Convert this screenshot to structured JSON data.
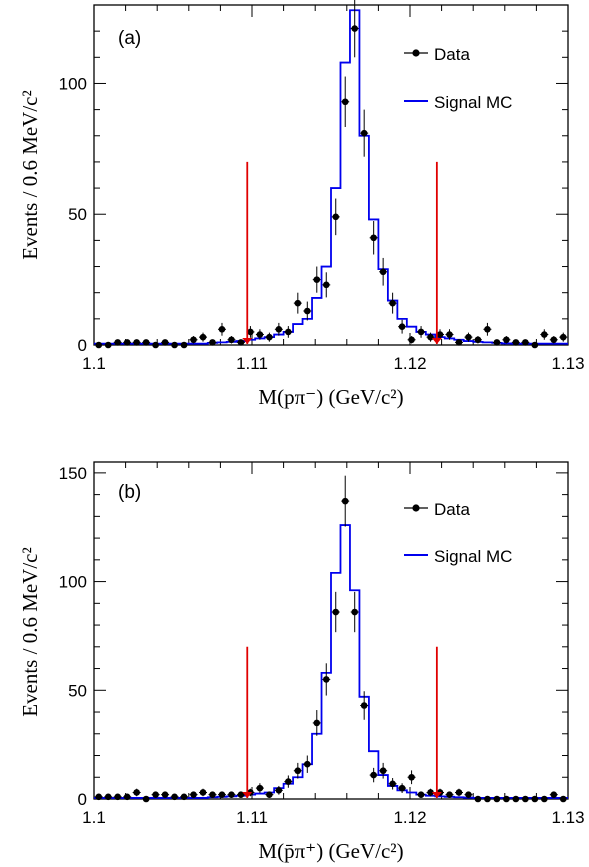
{
  "colors": {
    "data": "#000000",
    "mc": "#0000ee",
    "cut": "#e00000"
  },
  "chart_data": [
    {
      "type": "scatter",
      "panel_label": "(a)",
      "xlabel": "M(pπ⁻) (GeV/c²)",
      "ylabel": "Events / 0.6 MeV/c²",
      "xlim": [
        1.1,
        1.13
      ],
      "ylim": [
        0,
        130
      ],
      "x_ticks": [
        "1.1",
        "1.11",
        "1.12",
        "1.13"
      ],
      "y_ticks": [
        "0",
        "50",
        "100"
      ],
      "legend": {
        "position": "top-right",
        "entries": [
          "Data",
          "Signal MC"
        ]
      },
      "bin_width": 0.0006,
      "cut_lines": [
        1.1097,
        1.1217
      ],
      "cut_height": 70,
      "series": [
        {
          "name": "Data",
          "style": "points-with-error-bars",
          "x": [
            1.1003,
            1.1009,
            1.1015,
            1.1021,
            1.1027,
            1.1033,
            1.1039,
            1.1045,
            1.1051,
            1.1057,
            1.1063,
            1.1069,
            1.1075,
            1.1081,
            1.1087,
            1.1093,
            1.1099,
            1.1105,
            1.1111,
            1.1117,
            1.1123,
            1.1129,
            1.1135,
            1.1141,
            1.1147,
            1.1153,
            1.1159,
            1.1165,
            1.1171,
            1.1177,
            1.1183,
            1.1189,
            1.1195,
            1.1201,
            1.1207,
            1.1213,
            1.1219,
            1.1225,
            1.1231,
            1.1237,
            1.1243,
            1.1249,
            1.1255,
            1.1261,
            1.1267,
            1.1273,
            1.1279,
            1.1285,
            1.1291,
            1.1297
          ],
          "y": [
            0,
            0,
            1,
            1,
            1,
            1,
            0,
            1,
            0,
            0,
            2,
            3,
            1,
            6,
            2,
            1,
            5,
            4,
            3,
            6,
            5,
            16,
            13,
            25,
            23,
            49,
            93,
            121,
            81,
            41,
            28,
            16,
            7,
            2,
            5,
            3,
            4,
            4,
            1,
            3,
            2,
            6,
            1,
            2,
            1,
            1,
            0,
            4,
            2,
            3
          ]
        },
        {
          "name": "Signal MC",
          "style": "histogram-step",
          "x": [
            1.1003,
            1.1009,
            1.1015,
            1.1021,
            1.1027,
            1.1033,
            1.1039,
            1.1045,
            1.1051,
            1.1057,
            1.1063,
            1.1069,
            1.1075,
            1.1081,
            1.1087,
            1.1093,
            1.1099,
            1.1105,
            1.1111,
            1.1117,
            1.1123,
            1.1129,
            1.1135,
            1.1141,
            1.1147,
            1.1153,
            1.1159,
            1.1165,
            1.1171,
            1.1177,
            1.1183,
            1.1189,
            1.1195,
            1.1201,
            1.1207,
            1.1213,
            1.1219,
            1.1225,
            1.1231,
            1.1237,
            1.1243,
            1.1249,
            1.1255,
            1.1261,
            1.1267,
            1.1273,
            1.1279,
            1.1285,
            1.1291,
            1.1297
          ],
          "y": [
            0.5,
            0.5,
            0.5,
            0.5,
            0.5,
            0.5,
            0.5,
            0.5,
            0.5,
            0.5,
            0.5,
            0.5,
            0.8,
            1,
            1.2,
            1.5,
            2,
            2.5,
            3,
            4,
            5,
            8,
            10,
            18,
            30,
            60,
            108,
            128,
            80,
            48,
            29,
            17,
            10,
            7,
            5,
            4,
            3,
            2.5,
            2,
            1.5,
            1.2,
            1,
            0.8,
            0.6,
            0.5,
            0.5,
            0.5,
            0.5,
            0.5,
            0.5
          ]
        }
      ]
    },
    {
      "type": "scatter",
      "panel_label": "(b)",
      "xlabel": "M(p̄π⁺) (GeV/c²)",
      "ylabel": "Events / 0.6 MeV/c²",
      "xlim": [
        1.1,
        1.13
      ],
      "ylim": [
        0,
        155
      ],
      "x_ticks": [
        "1.1",
        "1.11",
        "1.12",
        "1.13"
      ],
      "y_ticks": [
        "0",
        "50",
        "100",
        "150"
      ],
      "legend": {
        "position": "top-right",
        "entries": [
          "Data",
          "Signal MC"
        ]
      },
      "bin_width": 0.0006,
      "cut_lines": [
        1.1097,
        1.1217
      ],
      "cut_height": 70,
      "series": [
        {
          "name": "Data",
          "style": "points-with-error-bars",
          "x": [
            1.1003,
            1.1009,
            1.1015,
            1.1021,
            1.1027,
            1.1033,
            1.1039,
            1.1045,
            1.1051,
            1.1057,
            1.1063,
            1.1069,
            1.1075,
            1.1081,
            1.1087,
            1.1093,
            1.1099,
            1.1105,
            1.1111,
            1.1117,
            1.1123,
            1.1129,
            1.1135,
            1.1141,
            1.1147,
            1.1153,
            1.1159,
            1.1165,
            1.1171,
            1.1177,
            1.1183,
            1.1189,
            1.1195,
            1.1201,
            1.1207,
            1.1213,
            1.1219,
            1.1225,
            1.1231,
            1.1237,
            1.1243,
            1.1249,
            1.1255,
            1.1261,
            1.1267,
            1.1273,
            1.1279,
            1.1285,
            1.1291,
            1.1297
          ],
          "y": [
            1,
            1,
            1,
            1,
            3,
            0,
            2,
            2,
            1,
            1,
            2,
            3,
            2,
            2,
            2,
            2,
            3,
            5,
            2,
            4,
            8,
            13,
            16,
            35,
            55,
            86,
            137,
            86,
            43,
            11,
            13,
            7,
            5,
            10,
            2,
            3,
            3,
            2,
            3,
            2,
            0,
            0,
            0,
            0,
            0,
            0,
            0,
            0,
            2,
            0
          ]
        },
        {
          "name": "Signal MC",
          "style": "histogram-step",
          "x": [
            1.1003,
            1.1009,
            1.1015,
            1.1021,
            1.1027,
            1.1033,
            1.1039,
            1.1045,
            1.1051,
            1.1057,
            1.1063,
            1.1069,
            1.1075,
            1.1081,
            1.1087,
            1.1093,
            1.1099,
            1.1105,
            1.1111,
            1.1117,
            1.1123,
            1.1129,
            1.1135,
            1.1141,
            1.1147,
            1.1153,
            1.1159,
            1.1165,
            1.1171,
            1.1177,
            1.1183,
            1.1189,
            1.1195,
            1.1201,
            1.1207,
            1.1213,
            1.1219,
            1.1225,
            1.1231,
            1.1237,
            1.1243,
            1.1249,
            1.1255,
            1.1261,
            1.1267,
            1.1273,
            1.1279,
            1.1285,
            1.1291,
            1.1297
          ],
          "y": [
            0.5,
            0.5,
            0.5,
            0.5,
            0.5,
            0.5,
            0.5,
            0.5,
            0.5,
            0.5,
            0.5,
            0.5,
            0.8,
            1,
            1.2,
            1.5,
            2,
            2.5,
            3,
            5,
            7,
            10,
            16,
            30,
            58,
            104,
            126,
            96,
            47,
            22,
            11,
            6,
            4,
            3,
            2,
            1.5,
            1.2,
            1,
            0.8,
            0.6,
            0.5,
            0.5,
            0.5,
            0.5,
            0.5,
            0.5,
            0.5,
            0.5,
            0.5,
            0.5
          ]
        }
      ]
    }
  ]
}
